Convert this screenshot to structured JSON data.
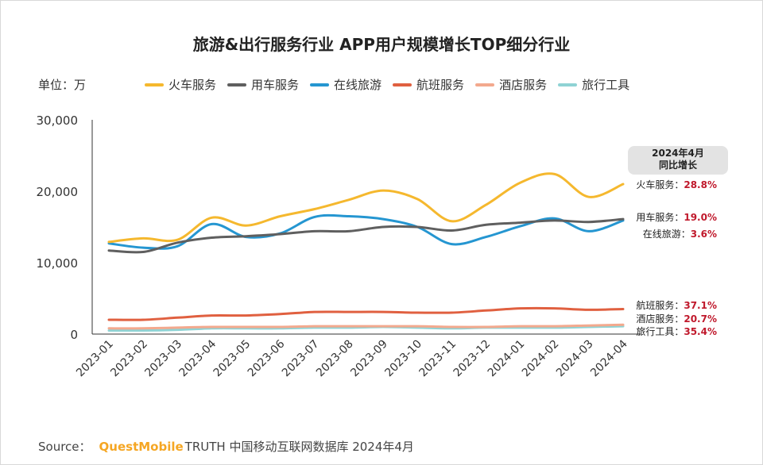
{
  "title": "旅游&出行服务行业 APP用户规模增长TOP细分行业",
  "unit_label": "单位：万",
  "source": {
    "label": "Source：",
    "brand": "QuestMobile",
    "rest": "TRUTH 中国移动互联网数据库 2024年4月"
  },
  "badge": {
    "line1": "2024年4月",
    "line2": "同比增长"
  },
  "growth": [
    {
      "name": "火车服务：",
      "pct": "28.8%"
    },
    {
      "name": "用车服务：",
      "pct": "19.0%"
    },
    {
      "name": "在线旅游：",
      "pct": "3.6%"
    },
    {
      "name": "航班服务：",
      "pct": "37.1%"
    },
    {
      "name": "酒店服务：",
      "pct": "20.7%"
    },
    {
      "name": "旅行工具：",
      "pct": "35.4%"
    }
  ],
  "chart_data": {
    "type": "line",
    "title": "旅游&出行服务行业 APP用户规模增长TOP细分行业",
    "ylabel": "单位：万",
    "ylim": [
      0,
      30000
    ],
    "yticks": [
      0,
      10000,
      20000,
      30000
    ],
    "ytick_labels": [
      "0",
      "10,000",
      "20,000",
      "30,000"
    ],
    "categories": [
      "2023-01",
      "2023-02",
      "2023-03",
      "2023-04",
      "2023-05",
      "2023-06",
      "2023-07",
      "2023-08",
      "2023-09",
      "2023-10",
      "2023-11",
      "2023-12",
      "2024-01",
      "2024-02",
      "2024-03",
      "2024-04"
    ],
    "series": [
      {
        "name": "火车服务",
        "color": "#f5b82e",
        "values": [
          12900,
          13400,
          13200,
          16300,
          15200,
          16500,
          17500,
          18800,
          20100,
          18900,
          15800,
          18100,
          21200,
          22400,
          19200,
          21000
        ]
      },
      {
        "name": "用车服务",
        "color": "#5f5f5f",
        "values": [
          11700,
          11500,
          12800,
          13500,
          13700,
          14000,
          14400,
          14400,
          15000,
          15000,
          14500,
          15300,
          15600,
          15900,
          15700,
          16100
        ]
      },
      {
        "name": "在线旅游",
        "color": "#2596d1",
        "values": [
          12700,
          12100,
          12300,
          15400,
          13600,
          14100,
          16400,
          16500,
          16100,
          15000,
          12600,
          13600,
          15100,
          16200,
          14400,
          15900
        ]
      },
      {
        "name": "航班服务",
        "color": "#e06040",
        "values": [
          2000,
          2000,
          2300,
          2600,
          2600,
          2800,
          3100,
          3100,
          3100,
          3000,
          3000,
          3300,
          3600,
          3600,
          3400,
          3500
        ]
      },
      {
        "name": "酒店服务",
        "color": "#f3a98e",
        "values": [
          800,
          800,
          900,
          1000,
          1000,
          1000,
          1100,
          1100,
          1100,
          1100,
          1000,
          1000,
          1100,
          1100,
          1200,
          1300
        ]
      },
      {
        "name": "旅行工具",
        "color": "#8fd3d4",
        "values": [
          500,
          500,
          600,
          800,
          800,
          800,
          900,
          900,
          1000,
          900,
          800,
          900,
          900,
          900,
          1000,
          1100
        ]
      }
    ]
  }
}
